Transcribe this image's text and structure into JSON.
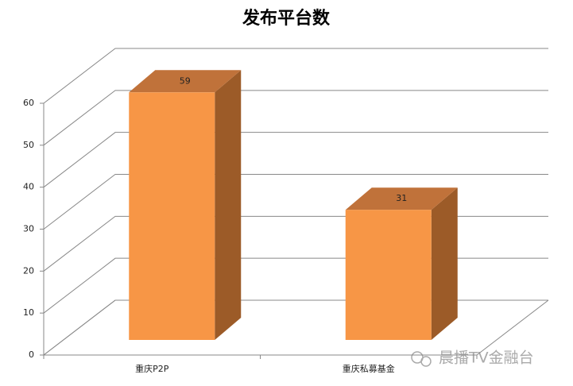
{
  "chart_data": {
    "type": "bar3d",
    "title": "发布平台数",
    "categories": [
      "重庆P2P",
      "重庆私募基金"
    ],
    "values": [
      59,
      31
    ],
    "value_labels": [
      "59",
      "31"
    ],
    "color": "#f79646",
    "ylim": [
      0,
      60
    ],
    "yticks": [
      0,
      10,
      20,
      30,
      40,
      50,
      60
    ],
    "grid": true
  },
  "watermark": "晨播TV金融台"
}
